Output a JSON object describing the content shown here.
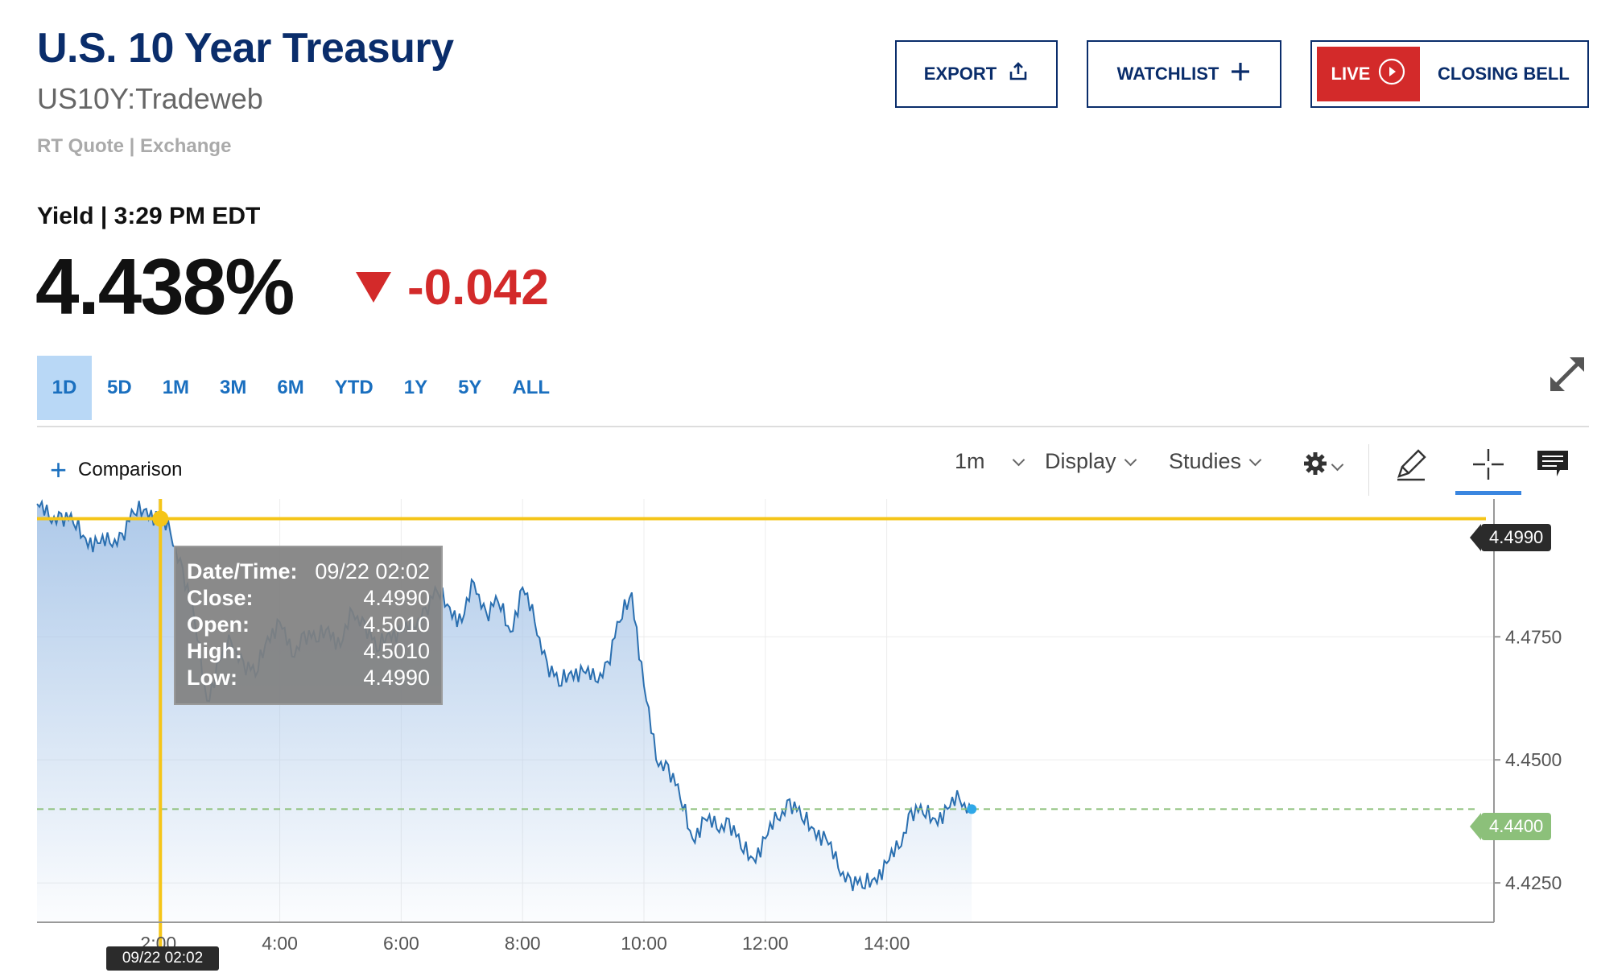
{
  "header": {
    "title": "U.S. 10 Year Treasury",
    "symbol": "US10Y:Tradeweb",
    "quote_meta": "RT Quote | Exchange"
  },
  "actions": {
    "export_label": "EXPORT",
    "watchlist_label": "WATCHLIST",
    "live_label": "LIVE",
    "closing_bell_label": "CLOSING BELL",
    "live_color": "#d32a2a"
  },
  "quote": {
    "yield_label": "Yield | 3:29 PM EDT",
    "price": "4.438%",
    "change": "-0.042",
    "change_direction": "down",
    "change_color": "#d32a2a"
  },
  "ranges": {
    "items": [
      "1D",
      "5D",
      "1M",
      "3M",
      "6M",
      "YTD",
      "1Y",
      "5Y",
      "ALL"
    ],
    "active": "1D"
  },
  "toolbar": {
    "comparison_label": "Comparison",
    "interval_label": "1m",
    "display_label": "Display",
    "studies_label": "Studies",
    "icons": [
      "gear-icon",
      "pencil-icon",
      "crosshair-icon",
      "comment-icon"
    ]
  },
  "tooltip": {
    "rows": [
      {
        "k": "Date/Time:",
        "v": "09/22 02:02"
      },
      {
        "k": "Close:",
        "v": "4.4990"
      },
      {
        "k": "Open:",
        "v": "4.5010"
      },
      {
        "k": "High:",
        "v": "4.5010"
      },
      {
        "k": "Low:",
        "v": "4.4990"
      }
    ]
  },
  "crosshair": {
    "time_label": "09/22 02:02",
    "price_label": "4.4990",
    "color": "#f5c518"
  },
  "last_price_tag": "4.4400",
  "chart_data": {
    "type": "area",
    "line_color": "#2a6fb0",
    "fill_color": "#a9c6e8",
    "x_ticks": [
      "2:00",
      "4:00",
      "6:00",
      "8:00",
      "10:00",
      "12:00",
      "14:00"
    ],
    "y_ticks": [
      "4.4750",
      "4.4500",
      "4.4250"
    ],
    "ylim": [
      4.417,
      4.503
    ],
    "xlim_hours": [
      0,
      24
    ],
    "last_value": 4.44,
    "x_hours": [
      0.0,
      0.2,
      0.4,
      0.6,
      0.8,
      1.0,
      1.2,
      1.4,
      1.6,
      1.8,
      2.0,
      2.2,
      2.4,
      2.6,
      2.8,
      3.0,
      3.2,
      3.4,
      3.6,
      3.8,
      4.0,
      4.2,
      4.4,
      4.6,
      4.8,
      5.0,
      5.2,
      5.4,
      5.6,
      5.8,
      6.0,
      6.2,
      6.4,
      6.6,
      6.8,
      7.0,
      7.2,
      7.4,
      7.6,
      7.8,
      8.0,
      8.2,
      8.4,
      8.6,
      8.8,
      9.0,
      9.2,
      9.4,
      9.6,
      9.8,
      10.0,
      10.2,
      10.4,
      10.6,
      10.8,
      11.0,
      11.2,
      11.4,
      11.6,
      11.8,
      12.0,
      12.2,
      12.4,
      12.6,
      12.8,
      13.0,
      13.2,
      13.4,
      13.6,
      13.8,
      14.0,
      14.2,
      14.4,
      14.6,
      14.8,
      15.0,
      15.2,
      15.4
    ],
    "values": [
      4.502,
      4.499,
      4.5,
      4.498,
      4.495,
      4.494,
      4.494,
      4.496,
      4.5,
      4.501,
      4.499,
      4.496,
      4.489,
      4.478,
      4.462,
      4.47,
      4.474,
      4.47,
      4.467,
      4.475,
      4.478,
      4.471,
      4.476,
      4.474,
      4.477,
      4.473,
      4.48,
      4.478,
      4.472,
      4.476,
      4.476,
      4.477,
      4.481,
      4.484,
      4.481,
      4.478,
      4.486,
      4.48,
      4.482,
      4.476,
      4.485,
      4.478,
      4.47,
      4.465,
      4.468,
      4.468,
      4.466,
      4.47,
      4.478,
      4.484,
      4.465,
      4.45,
      4.449,
      4.442,
      4.434,
      4.438,
      4.436,
      4.438,
      4.432,
      4.43,
      4.434,
      4.438,
      4.442,
      4.438,
      4.436,
      4.434,
      4.428,
      4.426,
      4.424,
      4.426,
      4.429,
      4.432,
      4.44,
      4.439,
      4.438,
      4.44,
      4.442,
      4.44
    ]
  }
}
